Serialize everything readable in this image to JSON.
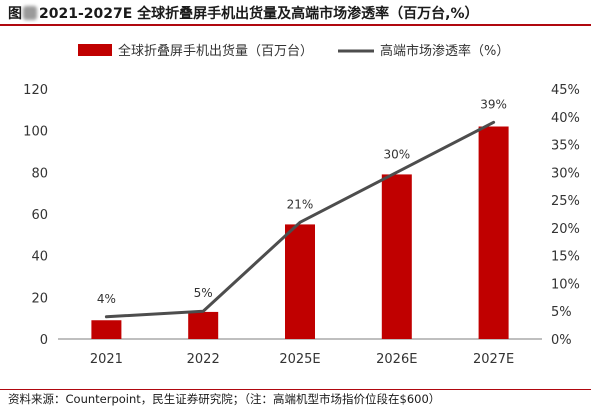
{
  "title": {
    "prefix": "图",
    "text": "2021-2027E 全球折叠屏手机出货量及高端市场渗透率（百万台,%）"
  },
  "source": "资料来源：Counterpoint，民生证券研究院；（注：高端机型市场指价位段在$600）",
  "colors": {
    "bar": "#c00000",
    "line": "#4d4d4d",
    "accent": "#b0080f"
  },
  "chart_data": {
    "type": "bar+line",
    "categories": [
      "2021",
      "2022",
      "2025E",
      "2026E",
      "2027E"
    ],
    "series": [
      {
        "name": "全球折叠屏手机出货量（百万台）",
        "type": "bar",
        "axis": "left",
        "values": [
          9,
          13,
          55,
          79,
          102
        ]
      },
      {
        "name": "高端市场渗透率（%）",
        "type": "line",
        "axis": "right",
        "values": [
          4,
          5,
          21,
          30,
          39
        ],
        "labels": [
          "4%",
          "5%",
          "21%",
          "30%",
          "39%"
        ]
      }
    ],
    "y_left": {
      "min": 0,
      "max": 120,
      "step": 20,
      "ticks": [
        "0",
        "20",
        "40",
        "60",
        "80",
        "100",
        "120"
      ]
    },
    "y_right": {
      "min": 0,
      "max": 45,
      "step": 5,
      "ticks": [
        "0%",
        "5%",
        "10%",
        "15%",
        "20%",
        "25%",
        "30%",
        "35%",
        "40%",
        "45%"
      ]
    },
    "legend_position": "top",
    "grid": false
  }
}
